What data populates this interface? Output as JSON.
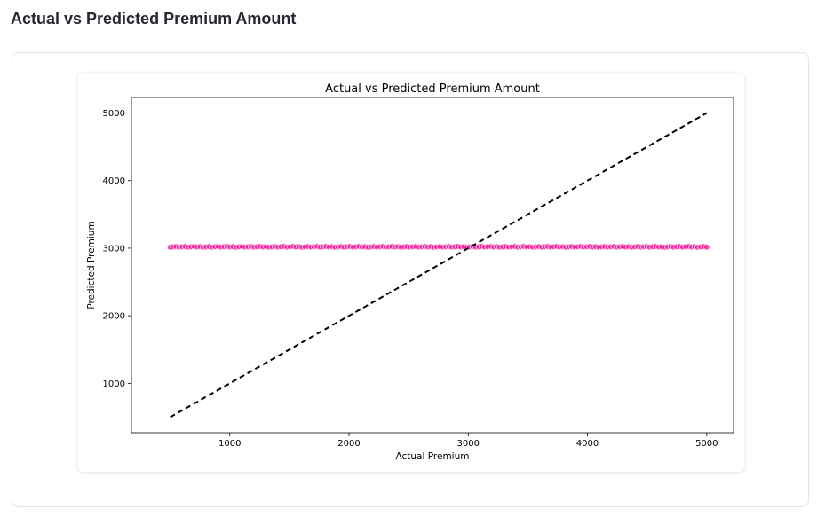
{
  "page": {
    "heading": "Actual vs Predicted Premium Amount"
  },
  "chart_data": {
    "type": "scatter",
    "title": "Actual vs Predicted Premium Amount",
    "xlabel": "Actual Premium",
    "ylabel": "Predicted Premium",
    "xlim": [
      175,
      5225
    ],
    "ylim": [
      270,
      5230
    ],
    "x_ticks": [
      1000,
      2000,
      3000,
      4000,
      5000
    ],
    "y_ticks": [
      1000,
      2000,
      3000,
      4000,
      5000
    ],
    "x_tick_labels": [
      "1000",
      "2000",
      "3000",
      "4000",
      "5000"
    ],
    "y_tick_labels": [
      "1000",
      "2000",
      "3000",
      "4000",
      "5000"
    ],
    "grid": false,
    "series": [
      {
        "kind": "scatter",
        "color": "#f0149a",
        "x_range": [
          500,
          5000
        ],
        "point_count": 180,
        "y_values_approx": 3020
      },
      {
        "kind": "reference-line",
        "style": "dashed",
        "color": "#000000",
        "points": [
          [
            500,
            500
          ],
          [
            5000,
            5000
          ]
        ]
      }
    ]
  }
}
